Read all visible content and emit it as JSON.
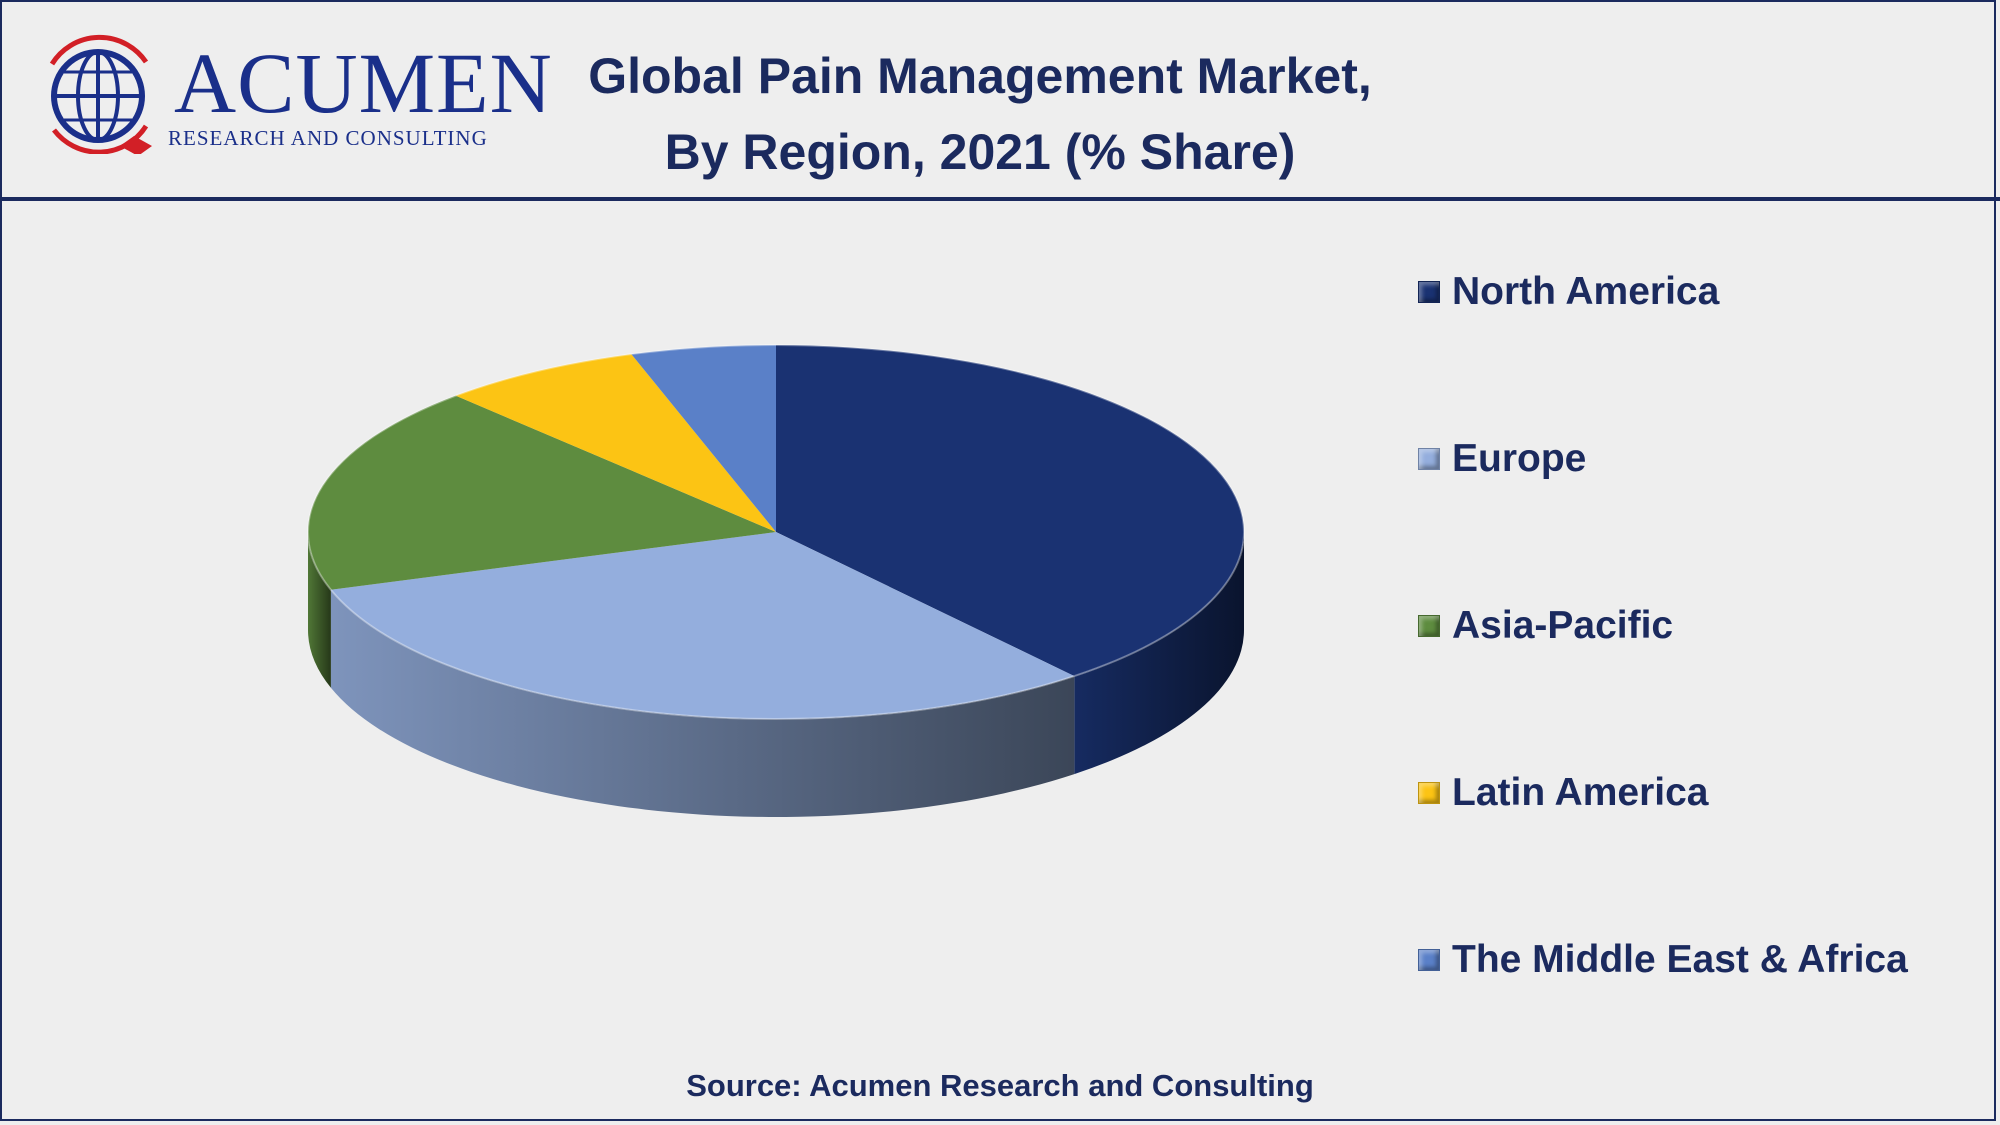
{
  "logo": {
    "name": "ACUMEN",
    "subtitle": "RESEARCH AND CONSULTING"
  },
  "title": {
    "line1": "Global Pain Management Market,",
    "line2": "By Region, 2021 (% Share)"
  },
  "source": "Source: Acumen Research and Consulting",
  "colors": {
    "text": "#1b2a5e",
    "background": "#eeeeee"
  },
  "chart_data": {
    "type": "pie",
    "style": "3d",
    "title": "Global Pain Management Market, By Region, 2021 (% Share)",
    "legend_position": "right",
    "categories": [
      "North America",
      "Europe",
      "Asia-Pacific",
      "Latin America",
      "The Middle East & Africa"
    ],
    "values": [
      39,
      31,
      18,
      7,
      5
    ],
    "colors": [
      "#1a3272",
      "#94aedd",
      "#5e8c3f",
      "#fcc414",
      "#5a80c8"
    ]
  }
}
